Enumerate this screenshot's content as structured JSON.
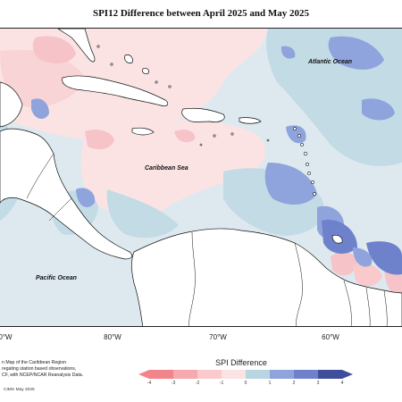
{
  "title": "SPI12 Difference between April 2025 and May 2025",
  "labels": {
    "atlantic": "Atlantic Ocean",
    "caribbean": "Caribbean Sea",
    "pacific": "Pacific Ocean"
  },
  "longitudes": [
    {
      "label": "0°W"
    },
    {
      "label": "80°W"
    },
    {
      "label": "70°W"
    },
    {
      "label": "60°W"
    }
  ],
  "credits": [
    "n Map of the Caribbean Region",
    "regating station based observations,",
    "CF, with NCEP/NCAR Reanalysis Data."
  ],
  "footer": "CIMH May 2025",
  "legend": {
    "title": "SPI Difference",
    "ticks": [
      "-4",
      "-3",
      "-2",
      "-1",
      "0",
      "1",
      "2",
      "3",
      "4"
    ],
    "colors": [
      "#f2848c",
      "#f6a9ae",
      "#f9c9cb",
      "#fbe3e4",
      "#dce9ee",
      "#b8d6e2",
      "#8fa3dc",
      "#6e82cc",
      "#3f4e9a"
    ]
  },
  "palette": {
    "ocean_neutral": "#dde9ef",
    "light_pink": "#fbe3e4",
    "pink": "#f6c4c8",
    "light_blue": "#c2dbe5",
    "blue": "#8fa3dc",
    "dark_blue": "#6e82cc",
    "land": "#ffffff",
    "coast": "#111111"
  }
}
